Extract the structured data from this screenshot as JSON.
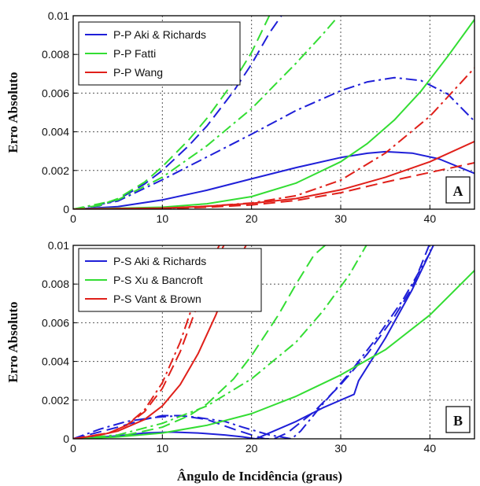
{
  "xlabel": "Ângulo de Incidência (graus)",
  "chart_data": [
    {
      "type": "line",
      "panel_label": "A",
      "ylabel": "Erro Absoluto",
      "xlim": [
        0,
        45
      ],
      "ylim": [
        0,
        0.01
      ],
      "x_ticks": [
        "0",
        "10",
        "20",
        "30",
        "40"
      ],
      "y_ticks": [
        "0",
        "0.002",
        "0.004",
        "0.006",
        "0.008",
        "0.01"
      ],
      "x_tick_values": [
        0,
        10,
        20,
        30,
        40
      ],
      "y_tick_values": [
        0,
        0.002,
        0.004,
        0.006,
        0.008,
        0.01
      ],
      "grid": true,
      "legend_position": "top-left",
      "legend": [
        {
          "label": "P-P Aki & Richards",
          "color": "#1f1fd8"
        },
        {
          "label": "P-P Fatti",
          "color": "#33dd33"
        },
        {
          "label": "P-P Wang",
          "color": "#e0201a"
        }
      ],
      "series": [
        {
          "color": "#1f1fd8",
          "dash": "solid",
          "x": [
            0,
            5,
            10,
            15,
            20,
            25,
            30,
            33,
            35,
            38,
            41,
            45
          ],
          "y": [
            0,
            0.00013,
            0.00048,
            0.00098,
            0.00157,
            0.00215,
            0.00267,
            0.00289,
            0.00297,
            0.0029,
            0.0026,
            0.00185
          ]
        },
        {
          "color": "#1f1fd8",
          "dash": "dash",
          "x": [
            0,
            3,
            5,
            8,
            10,
            13,
            15,
            18,
            20,
            22,
            23.5
          ],
          "y": [
            0,
            0.00018,
            0.0005,
            0.0013,
            0.002,
            0.0033,
            0.0043,
            0.0061,
            0.0075,
            0.0091,
            0.0101
          ]
        },
        {
          "color": "#1f1fd8",
          "dash": "dashdot",
          "x": [
            0,
            5,
            10,
            15,
            20,
            25,
            30,
            33,
            36,
            39,
            42,
            45
          ],
          "y": [
            0,
            0.00042,
            0.00152,
            0.0027,
            0.00388,
            0.0051,
            0.00612,
            0.00658,
            0.0068,
            0.00665,
            0.00595,
            0.00455
          ]
        },
        {
          "color": "#33dd33",
          "dash": "solid",
          "x": [
            0,
            10,
            15,
            20,
            25,
            30,
            33,
            36,
            39,
            42,
            45
          ],
          "y": [
            0,
            0.0001,
            0.00028,
            0.00065,
            0.00135,
            0.00245,
            0.0034,
            0.0046,
            0.0061,
            0.0079,
            0.0098
          ]
        },
        {
          "color": "#33dd33",
          "dash": "dash",
          "x": [
            0,
            3,
            5,
            8,
            10,
            13,
            15,
            18,
            20,
            22
          ],
          "y": [
            0,
            0.0002,
            0.00055,
            0.0014,
            0.0022,
            0.0036,
            0.0047,
            0.0066,
            0.0081,
            0.01
          ]
        },
        {
          "color": "#33dd33",
          "dash": "dashdot",
          "x": [
            0,
            5,
            10,
            15,
            20,
            25,
            28,
            29.5
          ],
          "y": [
            0,
            0.00048,
            0.00165,
            0.00328,
            0.0052,
            0.00755,
            0.00905,
            0.00985
          ]
        },
        {
          "color": "#e0201a",
          "dash": "solid",
          "x": [
            0,
            10,
            15,
            20,
            25,
            30,
            35,
            40,
            45
          ],
          "y": [
            0,
            5e-05,
            0.00015,
            0.0003,
            0.00055,
            0.001,
            0.00165,
            0.00245,
            0.0035
          ]
        },
        {
          "color": "#e0201a",
          "dash": "dash",
          "x": [
            0,
            10,
            15,
            20,
            25,
            30,
            35,
            40,
            45
          ],
          "y": [
            0,
            3e-05,
            0.0001,
            0.00022,
            0.00045,
            0.00085,
            0.0014,
            0.0019,
            0.0024
          ]
        },
        {
          "color": "#e0201a",
          "dash": "dashdot",
          "x": [
            0,
            10,
            15,
            20,
            25,
            30,
            35,
            40,
            45
          ],
          "y": [
            0,
            5e-05,
            0.00015,
            0.00032,
            0.0007,
            0.0015,
            0.0029,
            0.0048,
            0.0073
          ]
        }
      ]
    },
    {
      "type": "line",
      "panel_label": "B",
      "ylabel": "Erro Absoluto",
      "xlim": [
        0,
        45
      ],
      "ylim": [
        0,
        0.01
      ],
      "x_ticks": [
        "0",
        "10",
        "20",
        "30",
        "40"
      ],
      "y_ticks": [
        "0",
        "0.002",
        "0.004",
        "0.006",
        "0.008",
        "0.01"
      ],
      "x_tick_values": [
        0,
        10,
        20,
        30,
        40
      ],
      "y_tick_values": [
        0,
        0.002,
        0.004,
        0.006,
        0.008,
        0.01
      ],
      "grid": true,
      "legend_position": "top-left",
      "legend": [
        {
          "label": "P-S Aki & Richards",
          "color": "#1f1fd8"
        },
        {
          "label": "P-S Xu & Bancroft",
          "color": "#33dd33"
        },
        {
          "label": "P-S Vant & Brown",
          "color": "#e0201a"
        }
      ],
      "series": [
        {
          "color": "#1f1fd8",
          "dash": "solid",
          "x": [
            0,
            5,
            8,
            11,
            14,
            17,
            19,
            20,
            20.5,
            22,
            25,
            28,
            31.5,
            32,
            35,
            38,
            40.5
          ],
          "y": [
            0,
            0.00015,
            0.0003,
            0.00035,
            0.0003,
            0.0002,
            0.0001,
            3e-05,
            0,
            0.0003,
            0.0009,
            0.0016,
            0.0023,
            0.003,
            0.0052,
            0.0077,
            0.0101
          ]
        },
        {
          "color": "#1f1fd8",
          "dash": "dash",
          "x": [
            0,
            5,
            8,
            10,
            12,
            15,
            18,
            20,
            21.5,
            22.5,
            24,
            27,
            30,
            33,
            36,
            38,
            40
          ],
          "y": [
            0,
            0.0006,
            0.001,
            0.0012,
            0.0012,
            0.001,
            0.0005,
            0.0002,
            0,
            0,
            0.0003,
            0.0014,
            0.0028,
            0.0044,
            0.0063,
            0.0078,
            0.0101
          ]
        },
        {
          "color": "#1f1fd8",
          "dash": "dashdot",
          "x": [
            0,
            3,
            6,
            9,
            12,
            14,
            17,
            19,
            22,
            24.5,
            25.5,
            28,
            31,
            34,
            37,
            40
          ],
          "y": [
            0,
            0.0005,
            0.0009,
            0.0011,
            0.0012,
            0.0011,
            0.0009,
            0.0006,
            0.0002,
            0,
            0.0004,
            0.0018,
            0.0034,
            0.0052,
            0.0072,
            0.0096
          ]
        },
        {
          "color": "#33dd33",
          "dash": "solid",
          "x": [
            0,
            5,
            10,
            15,
            20,
            25,
            30,
            35,
            40,
            45
          ],
          "y": [
            0,
            0.0001,
            0.0003,
            0.0007,
            0.0013,
            0.0022,
            0.0033,
            0.0046,
            0.0064,
            0.0087
          ]
        },
        {
          "color": "#33dd33",
          "dash": "dash",
          "x": [
            0,
            5,
            10,
            13,
            15,
            18,
            20,
            23,
            25,
            27,
            28.5
          ],
          "y": [
            0,
            0.0001,
            0.0006,
            0.0012,
            0.0018,
            0.0031,
            0.0043,
            0.0064,
            0.008,
            0.0095,
            0.0101
          ]
        },
        {
          "color": "#33dd33",
          "dash": "dashdot",
          "x": [
            0,
            5,
            10,
            15,
            20,
            25,
            28,
            31,
            33
          ],
          "y": [
            0,
            0.0002,
            0.0008,
            0.0017,
            0.0031,
            0.005,
            0.0066,
            0.0085,
            0.0101
          ]
        },
        {
          "color": "#e0201a",
          "dash": "solid",
          "x": [
            0,
            3,
            5,
            8,
            10,
            12,
            14,
            16,
            18,
            19.5
          ],
          "y": [
            0,
            0.0002,
            0.0004,
            0.001,
            0.0017,
            0.0028,
            0.0044,
            0.0064,
            0.0088,
            0.0101
          ]
        },
        {
          "color": "#e0201a",
          "dash": "dash",
          "x": [
            0,
            4,
            6,
            8,
            10,
            12,
            14,
            15.5,
            17
          ],
          "y": [
            0,
            0.0003,
            0.0007,
            0.0014,
            0.0026,
            0.0045,
            0.007,
            0.0087,
            0.0101
          ]
        },
        {
          "color": "#e0201a",
          "dash": "dashdot",
          "x": [
            0,
            4,
            6,
            8,
            10,
            12,
            14,
            15.5,
            16.5
          ],
          "y": [
            0,
            0.0003,
            0.0007,
            0.0015,
            0.0029,
            0.005,
            0.0077,
            0.0092,
            0.0101
          ]
        }
      ]
    }
  ]
}
